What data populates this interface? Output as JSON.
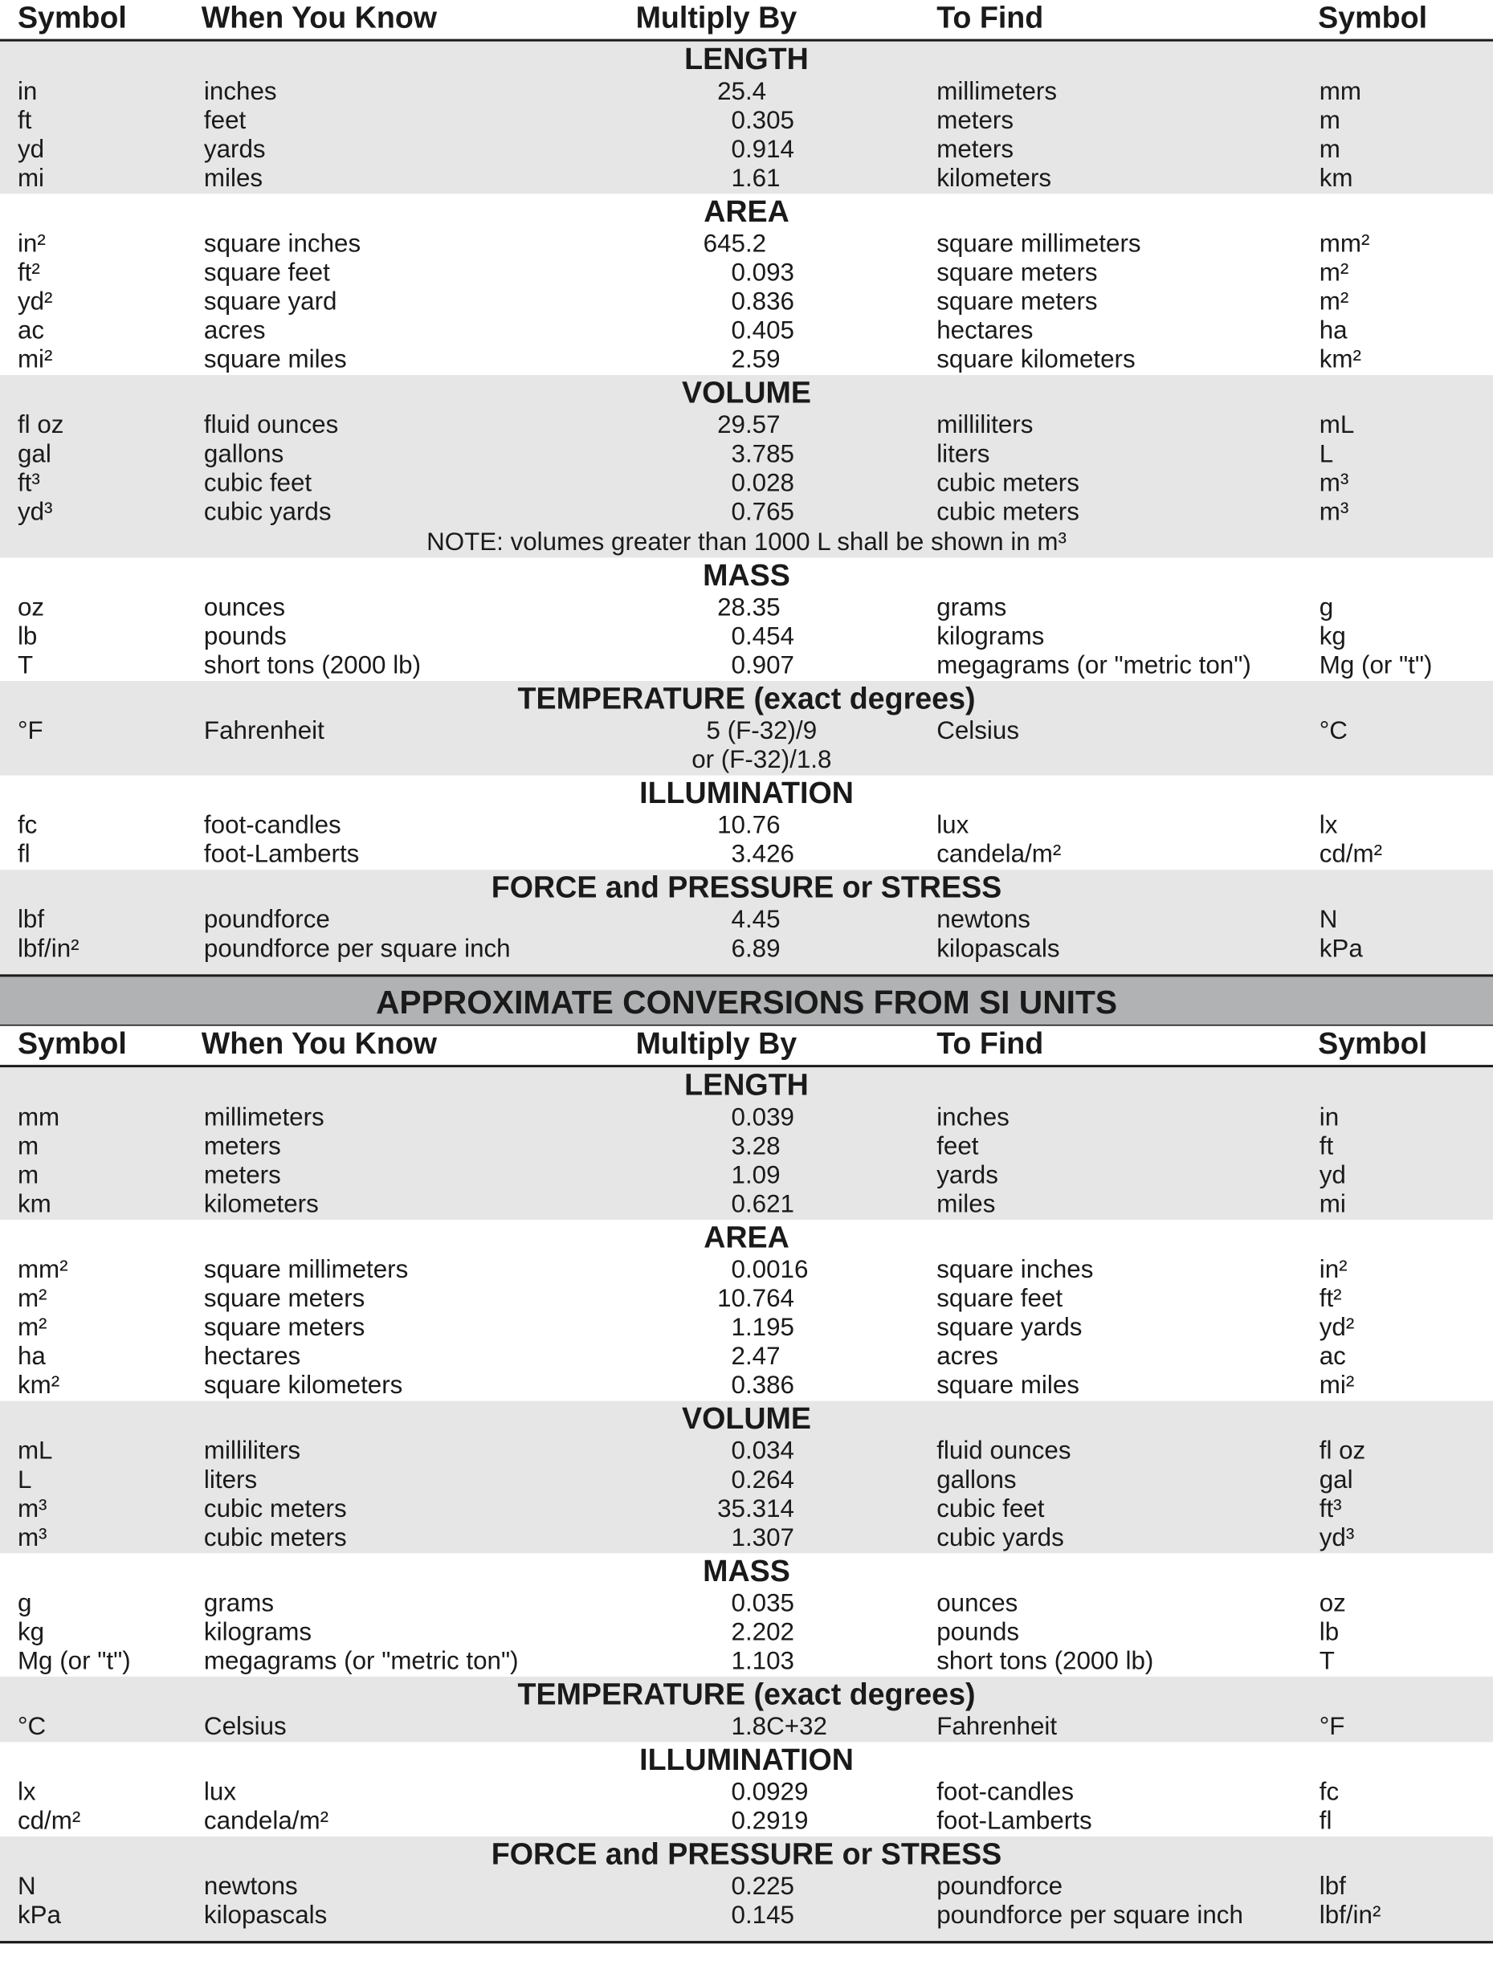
{
  "headers": [
    "Symbol",
    "When You Know",
    "Multiply By",
    "To Find",
    "Symbol"
  ],
  "colors": {
    "gray_band": "#e6e6e7",
    "title_band": "#b1b2b4",
    "text": "#1a1a1a"
  },
  "band_title": "APPROXIMATE CONVERSIONS FROM SI UNITS",
  "tables": [
    {
      "sections": [
        {
          "title": "LENGTH",
          "rows": [
            [
              "in",
              "inches",
              "25.4",
              "millimeters",
              "mm"
            ],
            [
              "ft",
              "feet",
              "0.305",
              "meters",
              "m"
            ],
            [
              "yd",
              "yards",
              "0.914",
              "meters",
              "m"
            ],
            [
              "mi",
              "miles",
              "1.61",
              "kilometers",
              "km"
            ]
          ]
        },
        {
          "title": "AREA",
          "rows": [
            [
              "in²",
              "square inches",
              "645.2",
              "square millimeters",
              "mm²"
            ],
            [
              "ft²",
              "square feet",
              "0.093",
              "square meters",
              "m²"
            ],
            [
              "yd²",
              "square yard",
              "0.836",
              "square meters",
              "m²"
            ],
            [
              "ac",
              "acres",
              "0.405",
              "hectares",
              "ha"
            ],
            [
              "mi²",
              "square miles",
              "2.59",
              "square kilometers",
              "km²"
            ]
          ]
        },
        {
          "title": "VOLUME",
          "rows": [
            [
              "fl oz",
              "fluid ounces",
              "29.57",
              "milliliters",
              "mL"
            ],
            [
              "gal",
              "gallons",
              "3.785",
              "liters",
              "L"
            ],
            [
              "ft³",
              "cubic feet",
              "0.028",
              "cubic meters",
              "m³"
            ],
            [
              "yd³",
              "cubic yards",
              "0.765",
              "cubic meters",
              "m³"
            ]
          ],
          "note": "NOTE: volumes greater than 1000 L shall be shown in m³"
        },
        {
          "title": "MASS",
          "rows": [
            [
              "oz",
              "ounces",
              "28.35",
              "grams",
              "g"
            ],
            [
              "lb",
              "pounds",
              "0.454",
              "kilograms",
              "kg"
            ],
            [
              "T",
              "short tons (2000 lb)",
              "0.907",
              "megagrams (or \"metric ton\")",
              "Mg (or \"t\")"
            ]
          ]
        },
        {
          "title": "TEMPERATURE (exact degrees)",
          "rows": [
            [
              "°F",
              "Fahrenheit",
              "5 (F-32)/9",
              "Celsius",
              "°C"
            ],
            [
              "",
              "",
              "or (F-32)/1.8",
              "",
              ""
            ]
          ]
        },
        {
          "title": "ILLUMINATION",
          "rows": [
            [
              "fc",
              "foot-candles",
              "10.76",
              "lux",
              "lx"
            ],
            [
              "fl",
              "foot-Lamberts",
              "3.426",
              "candela/m²",
              "cd/m²"
            ]
          ]
        },
        {
          "title": "FORCE and PRESSURE or STRESS",
          "rows": [
            [
              "lbf",
              "poundforce",
              "4.45",
              "newtons",
              "N"
            ],
            [
              "lbf/in²",
              "poundforce per square inch",
              "6.89",
              "kilopascals",
              "kPa"
            ]
          ]
        }
      ]
    },
    {
      "sections": [
        {
          "title": "LENGTH",
          "rows": [
            [
              "mm",
              "millimeters",
              "0.039",
              "inches",
              "in"
            ],
            [
              "m",
              "meters",
              "3.28",
              "feet",
              "ft"
            ],
            [
              "m",
              "meters",
              "1.09",
              "yards",
              "yd"
            ],
            [
              "km",
              "kilometers",
              "0.621",
              "miles",
              "mi"
            ]
          ]
        },
        {
          "title": "AREA",
          "rows": [
            [
              "mm²",
              "square millimeters",
              "0.0016",
              "square inches",
              "in²"
            ],
            [
              "m²",
              "square meters",
              "10.764",
              "square feet",
              "ft²"
            ],
            [
              "m²",
              "square meters",
              "1.195",
              "square yards",
              "yd²"
            ],
            [
              "ha",
              "hectares",
              "2.47",
              "acres",
              "ac"
            ],
            [
              "km²",
              "square kilometers",
              "0.386",
              "square miles",
              "mi²"
            ]
          ]
        },
        {
          "title": "VOLUME",
          "rows": [
            [
              "mL",
              "milliliters",
              "0.034",
              "fluid ounces",
              "fl oz"
            ],
            [
              "L",
              "liters",
              "0.264",
              "gallons",
              "gal"
            ],
            [
              "m³",
              "cubic meters",
              "35.314",
              "cubic feet",
              "ft³"
            ],
            [
              "m³",
              "cubic meters",
              "1.307",
              "cubic yards",
              "yd³"
            ]
          ]
        },
        {
          "title": "MASS",
          "rows": [
            [
              "g",
              "grams",
              "0.035",
              "ounces",
              "oz"
            ],
            [
              "kg",
              "kilograms",
              "2.202",
              "pounds",
              "lb"
            ],
            [
              "Mg (or \"t\")",
              "megagrams (or \"metric ton\")",
              "1.103",
              "short tons (2000 lb)",
              "T"
            ]
          ]
        },
        {
          "title": "TEMPERATURE (exact degrees)",
          "rows": [
            [
              "°C",
              "Celsius",
              "1.8C+32",
              "Fahrenheit",
              "°F"
            ]
          ]
        },
        {
          "title": "ILLUMINATION",
          "rows": [
            [
              "lx",
              "lux",
              "0.0929",
              "foot-candles",
              "fc"
            ],
            [
              "cd/m²",
              "candela/m²",
              "0.2919",
              "foot-Lamberts",
              "fl"
            ]
          ]
        },
        {
          "title": "FORCE and PRESSURE or STRESS",
          "rows": [
            [
              "N",
              "newtons",
              "0.225",
              "poundforce",
              "lbf"
            ],
            [
              "kPa",
              "kilopascals",
              "0.145",
              "poundforce per square inch",
              "lbf/in²"
            ]
          ]
        }
      ]
    }
  ]
}
